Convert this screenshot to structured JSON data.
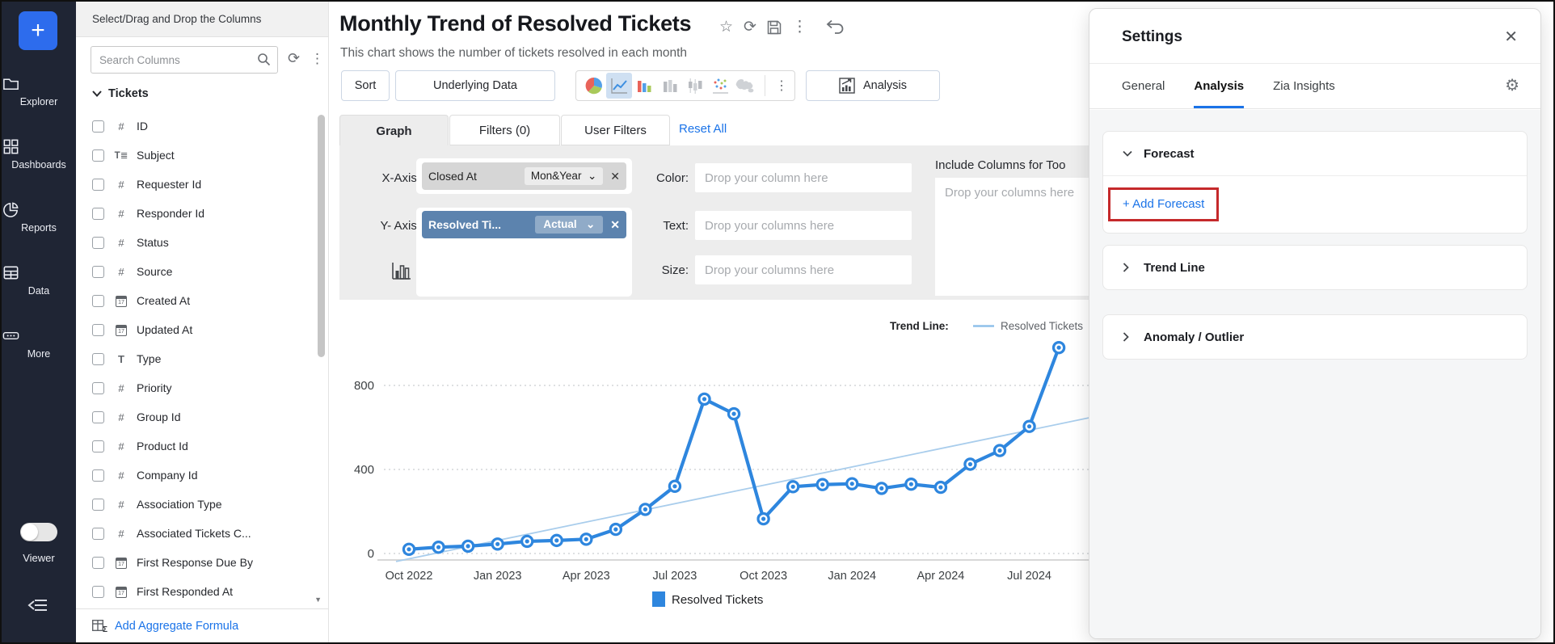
{
  "sidebar": {
    "add_button": "+",
    "items": [
      {
        "label": "Explorer",
        "icon": "folder-icon"
      },
      {
        "label": "Dashboards",
        "icon": "grid-icon"
      },
      {
        "label": "Reports",
        "icon": "pie-chart-icon"
      },
      {
        "label": "Data",
        "icon": "table-icon"
      },
      {
        "label": "More",
        "icon": "more-icon"
      }
    ],
    "viewer_toggle": {
      "label": "Viewer",
      "state": "off"
    },
    "collapse_icon": "collapse-left-icon"
  },
  "columns_panel": {
    "header": "Select/Drag and Drop the Columns",
    "search_placeholder": "Search Columns",
    "group": "Tickets",
    "items": [
      {
        "label": "ID",
        "type": "number"
      },
      {
        "label": "Subject",
        "type": "text"
      },
      {
        "label": "Requester Id",
        "type": "number"
      },
      {
        "label": "Responder Id",
        "type": "number"
      },
      {
        "label": "Status",
        "type": "number"
      },
      {
        "label": "Source",
        "type": "number"
      },
      {
        "label": "Created At",
        "type": "date"
      },
      {
        "label": "Updated At",
        "type": "date"
      },
      {
        "label": "Type",
        "type": "letter"
      },
      {
        "label": "Priority",
        "type": "number"
      },
      {
        "label": "Group Id",
        "type": "number"
      },
      {
        "label": "Product Id",
        "type": "number"
      },
      {
        "label": "Company Id",
        "type": "number"
      },
      {
        "label": "Association Type",
        "type": "number"
      },
      {
        "label": "Associated Tickets C...",
        "type": "number"
      },
      {
        "label": "First Response Due By",
        "type": "date"
      },
      {
        "label": "First Responded At",
        "type": "date"
      }
    ],
    "add_aggregate_label": "Add Aggregate Formula"
  },
  "report": {
    "title": "Monthly Trend of Resolved Tickets",
    "subtitle": "This chart shows the number of tickets resolved in each month"
  },
  "toolbar": {
    "sort_label": "Sort",
    "underlying_data_label": "Underlying Data",
    "analysis_label": "Analysis",
    "chart_type_icons": [
      "pie-chart-type-icon",
      "line-chart-type-icon",
      "bar-chart-type-icon",
      "stacked-bar-type-icon",
      "candlestick-type-icon",
      "scatter-type-icon",
      "map-type-icon"
    ],
    "selected_chart_type": "line-chart-type-icon"
  },
  "view_tabs": {
    "graph": "Graph",
    "filters": "Filters  (0)",
    "user_filters": "User Filters",
    "reset_all": "Reset All",
    "active": "Graph"
  },
  "config": {
    "x_axis_label": "X-Axis:",
    "x_field": "Closed At",
    "x_period": "Mon&Year",
    "y_axis_label": "Y- Axis:",
    "y_field": "Resolved Ti...",
    "y_aggregate": "Actual",
    "color_label": "Color:",
    "color_placeholder": "Drop your column here",
    "text_label": "Text:",
    "text_placeholder": "Drop your columns here",
    "size_label": "Size:",
    "size_placeholder": "Drop your columns here",
    "include_columns_title": "Include Columns for Too",
    "include_columns_placeholder": "Drop your columns here"
  },
  "chart_data": {
    "type": "line",
    "title": "Monthly Trend of Resolved Tickets",
    "x": [
      "Oct 2022",
      "Nov 2022",
      "Dec 2022",
      "Jan 2023",
      "Feb 2023",
      "Mar 2023",
      "Apr 2023",
      "May 2023",
      "Jun 2023",
      "Jul 2023",
      "Aug 2023",
      "Sep 2023",
      "Oct 2023",
      "Nov 2023",
      "Dec 2023",
      "Jan 2024",
      "Feb 2024",
      "Mar 2024",
      "Apr 2024",
      "May 2024",
      "Jun 2024",
      "Jul 2024",
      "Aug 2024"
    ],
    "x_tick_labels": [
      "Oct 2022",
      "Jan 2023",
      "Apr 2023",
      "Jul 2023",
      "Oct 2023",
      "Jan 2024",
      "Apr 2024",
      "Jul 2024"
    ],
    "series": [
      {
        "name": "Resolved Tickets",
        "color": "#2e86de",
        "values": [
          20,
          30,
          35,
          45,
          58,
          62,
          68,
          115,
          210,
          320,
          735,
          665,
          165,
          318,
          328,
          332,
          310,
          330,
          315,
          425,
          490,
          605,
          980
        ]
      }
    ],
    "trend_line": {
      "label": "Trend Line:",
      "series_name": "Resolved Tickets",
      "color": "#a9cdec",
      "approx_start_value": -38,
      "approx_end_value": 652
    },
    "yticks": [
      0,
      400,
      800
    ],
    "ylim": [
      -60,
      1060
    ],
    "grid": "horizontal-dotted",
    "legend": [
      {
        "label": "Resolved Tickets",
        "color": "#2e86de"
      }
    ],
    "legend_position": "bottom"
  },
  "settings": {
    "title": "Settings",
    "tabs": [
      "General",
      "Analysis",
      "Zia Insights"
    ],
    "active_tab": "Analysis",
    "sections": [
      {
        "label": "Forecast",
        "expanded": true,
        "action_label": "+ Add Forecast",
        "action_highlighted": true
      },
      {
        "label": "Trend Line",
        "expanded": false
      },
      {
        "label": "Anomaly / Outlier",
        "expanded": false
      }
    ]
  },
  "colors": {
    "accent_blue": "#1a73e8",
    "chart_line": "#2e86de",
    "trend_line": "#a9cdec",
    "highlight_red": "#c5292b",
    "sidebar_bg": "#1f2534",
    "y_axis_chip": "#5c83ae"
  }
}
